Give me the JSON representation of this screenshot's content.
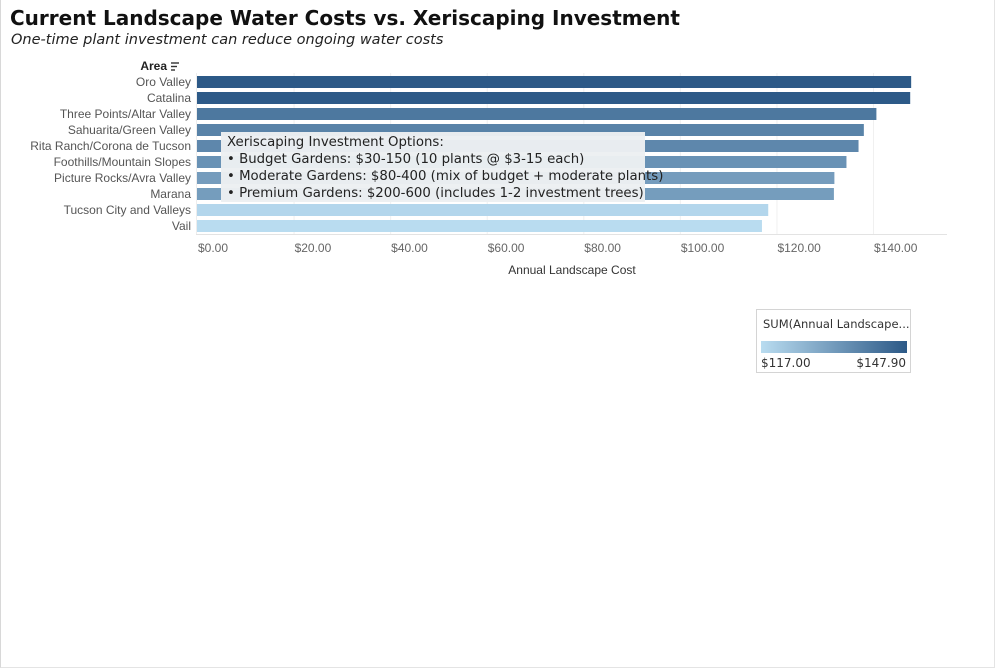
{
  "title": "Current Landscape Water Costs vs. Xeriscaping Investment",
  "subtitle": "One-time plant investment can reduce ongoing water costs",
  "sort_icon": "sort-descending-icon",
  "annotation": {
    "heading": "Xeriscaping Investment Options:",
    "lines": [
      "• Budget Gardens: $30-150 (10 plants @ $3-15 each)",
      "• Moderate Gardens: $80-400 (mix of budget + moderate plants)",
      "• Premium Gardens: $200-600 (includes 1-2 investment trees)"
    ]
  },
  "legend": {
    "title": "SUM(Annual Landscape...",
    "min_label": "$117.00",
    "max_label": "$147.90",
    "color_min": "#b9dcf0",
    "color_max": "#2c5987"
  },
  "chart_data": {
    "type": "bar",
    "orientation": "horizontal",
    "row_header": "Area",
    "xlabel": "Annual Landscape Cost",
    "ylabel": "",
    "xlim": [
      0,
      155
    ],
    "xticks": [
      0,
      20,
      40,
      60,
      80,
      100,
      120,
      140
    ],
    "xtick_labels": [
      "$0.00",
      "$20.00",
      "$40.00",
      "$60.00",
      "$80.00",
      "$100.00",
      "$120.00",
      "$140.00"
    ],
    "grid": true,
    "categories": [
      "Oro Valley",
      "Catalina",
      "Three Points/Altar Valley",
      "Sahuarita/Green Valley",
      "Rita Ranch/Corona de Tucson",
      "Foothills/Mountain Slopes",
      "Picture Rocks/Avra Valley",
      "Marana",
      "Tucson City and Valleys",
      "Vail"
    ],
    "values": [
      147.9,
      147.7,
      140.7,
      138.1,
      137.0,
      134.5,
      132.0,
      131.9,
      118.3,
      117.0
    ],
    "color_scale": {
      "min": 117.0,
      "max": 147.9
    }
  }
}
